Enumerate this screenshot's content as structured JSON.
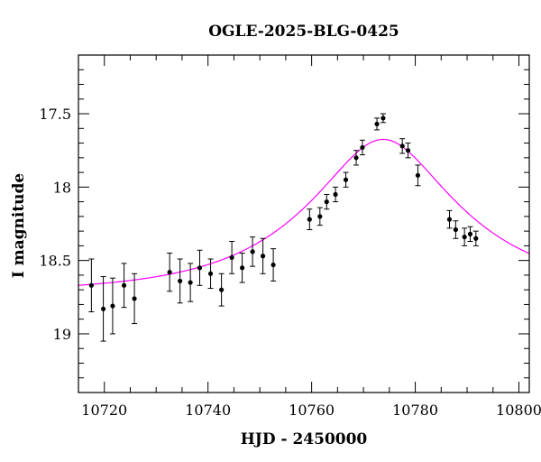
{
  "chart_data": {
    "type": "scatter",
    "title": "OGLE-2025-BLG-0425",
    "xlabel": "HJD - 2450000",
    "ylabel": "I magnitude",
    "xlim": [
      10715,
      10802
    ],
    "ylim": [
      19.4,
      17.1
    ],
    "y_inverted": true,
    "x_ticks": [
      10720,
      10740,
      10760,
      10780,
      10800
    ],
    "x_tick_labels": [
      "10720",
      "10740",
      "10760",
      "10780",
      "10800"
    ],
    "y_ticks": [
      17.5,
      18,
      18.5,
      19
    ],
    "y_tick_labels": [
      "17.5",
      "18",
      "18.5",
      "19"
    ],
    "grid": false,
    "model_color": "#ff00ff",
    "point_color": "#000000",
    "model": {
      "name": "",
      "t0": 10773.8,
      "tE": 27.6,
      "u0": 0.405,
      "baseline_mag": 18.72,
      "blend_fraction": 1.0
    },
    "series": [
      {
        "name": "",
        "points": [
          {
            "x": 10717.5,
            "y": 18.67,
            "err": 0.18
          },
          {
            "x": 10719.8,
            "y": 18.83,
            "err": 0.22
          },
          {
            "x": 10721.6,
            "y": 18.81,
            "err": 0.19
          },
          {
            "x": 10723.8,
            "y": 18.67,
            "err": 0.15
          },
          {
            "x": 10725.8,
            "y": 18.76,
            "err": 0.17
          },
          {
            "x": 10732.6,
            "y": 18.58,
            "err": 0.13
          },
          {
            "x": 10734.6,
            "y": 18.64,
            "err": 0.15
          },
          {
            "x": 10736.6,
            "y": 18.65,
            "err": 0.13
          },
          {
            "x": 10738.4,
            "y": 18.55,
            "err": 0.12
          },
          {
            "x": 10740.5,
            "y": 18.59,
            "err": 0.1
          },
          {
            "x": 10742.6,
            "y": 18.7,
            "err": 0.11
          },
          {
            "x": 10744.6,
            "y": 18.48,
            "err": 0.11
          },
          {
            "x": 10746.6,
            "y": 18.55,
            "err": 0.1
          },
          {
            "x": 10748.6,
            "y": 18.44,
            "err": 0.1
          },
          {
            "x": 10750.6,
            "y": 18.47,
            "err": 0.12
          },
          {
            "x": 10752.6,
            "y": 18.53,
            "err": 0.11
          },
          {
            "x": 10759.6,
            "y": 18.22,
            "err": 0.07
          },
          {
            "x": 10761.6,
            "y": 18.2,
            "err": 0.06
          },
          {
            "x": 10762.9,
            "y": 18.1,
            "err": 0.05
          },
          {
            "x": 10764.6,
            "y": 18.05,
            "err": 0.05
          },
          {
            "x": 10766.6,
            "y": 17.95,
            "err": 0.05
          },
          {
            "x": 10768.6,
            "y": 17.8,
            "err": 0.05
          },
          {
            "x": 10769.8,
            "y": 17.73,
            "err": 0.05
          },
          {
            "x": 10772.6,
            "y": 17.57,
            "err": 0.04
          },
          {
            "x": 10773.8,
            "y": 17.53,
            "err": 0.03
          },
          {
            "x": 10777.5,
            "y": 17.72,
            "err": 0.05
          },
          {
            "x": 10778.6,
            "y": 17.75,
            "err": 0.05
          },
          {
            "x": 10780.5,
            "y": 17.92,
            "err": 0.07
          },
          {
            "x": 10786.6,
            "y": 18.22,
            "err": 0.06
          },
          {
            "x": 10787.8,
            "y": 18.29,
            "err": 0.06
          },
          {
            "x": 10789.5,
            "y": 18.34,
            "err": 0.06
          },
          {
            "x": 10790.6,
            "y": 18.32,
            "err": 0.05
          },
          {
            "x": 10791.7,
            "y": 18.35,
            "err": 0.05
          }
        ]
      }
    ]
  }
}
